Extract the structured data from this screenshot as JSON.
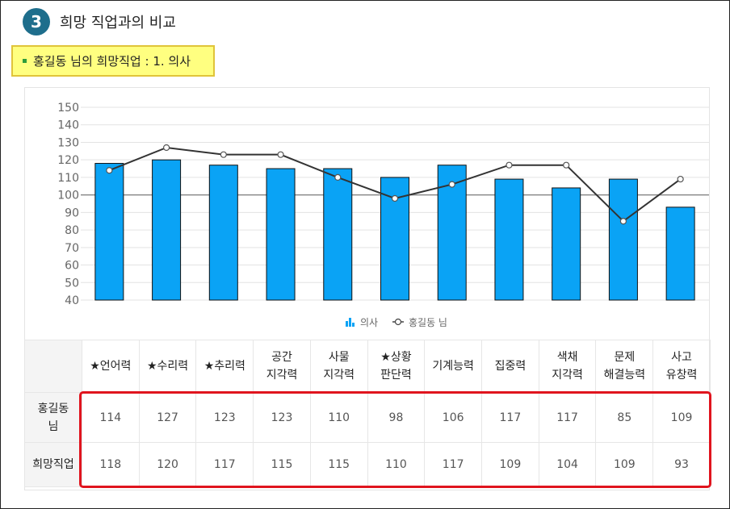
{
  "header": {
    "number": "3",
    "title": "희망 직업과의 비교"
  },
  "job_box": {
    "label": "홍길동 님의 희망직업 : 1. 의사"
  },
  "chart_data": {
    "type": "bar",
    "categories": [
      "★언어력",
      "★수리력",
      "★추리력",
      "공간 지각력",
      "사물 지각력",
      "★상황 판단력",
      "기계능력",
      "집중력",
      "색채 지각력",
      "문제 해결능력",
      "사고 유창력"
    ],
    "series": [
      {
        "name": "의사",
        "type": "bar",
        "color": "#0aa3f5",
        "values": [
          118,
          120,
          117,
          115,
          115,
          110,
          117,
          109,
          104,
          109,
          93
        ]
      },
      {
        "name": "홍길동 님",
        "type": "line",
        "color": "#333333",
        "values": [
          114,
          127,
          123,
          123,
          110,
          98,
          106,
          117,
          117,
          85,
          109
        ]
      }
    ],
    "ylim": [
      40,
      150
    ],
    "yticks": [
      40,
      50,
      60,
      70,
      80,
      90,
      100,
      110,
      120,
      130,
      140,
      150
    ],
    "reference_line": 100,
    "legend_position": "bottom-center",
    "grid": true
  },
  "table": {
    "headers": [
      [
        "★언어력"
      ],
      [
        "★수리력"
      ],
      [
        "★추리력"
      ],
      [
        "공간",
        "지각력"
      ],
      [
        "사물",
        "지각력"
      ],
      [
        "★상황",
        "판단력"
      ],
      [
        "기계능력"
      ],
      [
        "집중력"
      ],
      [
        "색채",
        "지각력"
      ],
      [
        "문제",
        "해결능력"
      ],
      [
        "사고",
        "유창력"
      ]
    ],
    "rows": [
      {
        "label": [
          "홍길동",
          "님"
        ],
        "values": [
          "114",
          "127",
          "123",
          "123",
          "110",
          "98",
          "106",
          "117",
          "117",
          "85",
          "109"
        ]
      },
      {
        "label": [
          "희망직업"
        ],
        "values": [
          "118",
          "120",
          "117",
          "115",
          "115",
          "110",
          "117",
          "109",
          "104",
          "109",
          "93"
        ]
      }
    ]
  }
}
